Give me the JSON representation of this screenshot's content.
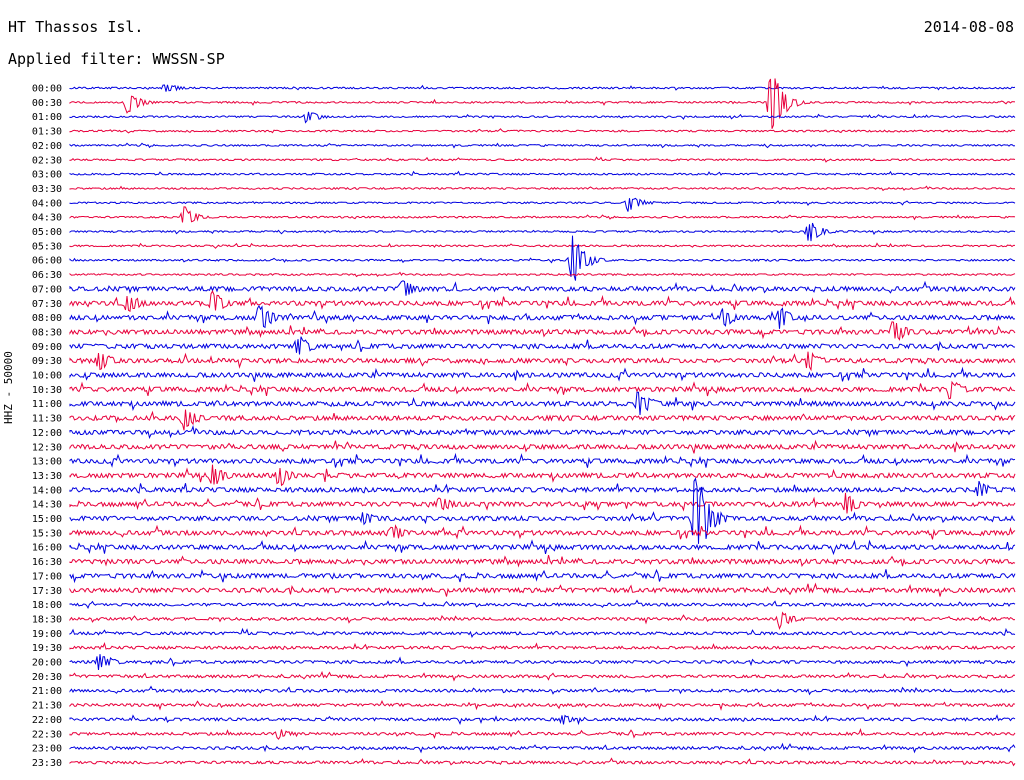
{
  "header": {
    "station": "HT Thassos Isl.",
    "date": "2014-08-08",
    "filter_label": "Applied filter: WWSSN-SP"
  },
  "chart_data": {
    "type": "line",
    "title": "HT Thassos Isl.",
    "subtitle": "Applied filter: WWSSN-SP",
    "date": "2014-08-08",
    "ylabel": "HHZ - 50000",
    "trace_labels": [
      "00:00",
      "00:30",
      "01:00",
      "01:30",
      "02:00",
      "02:30",
      "03:00",
      "03:30",
      "04:00",
      "04:30",
      "05:00",
      "05:30",
      "06:00",
      "06:30",
      "07:00",
      "07:30",
      "08:00",
      "08:30",
      "09:00",
      "09:30",
      "10:00",
      "10:30",
      "11:00",
      "11:30",
      "12:00",
      "12:30",
      "13:00",
      "13:30",
      "14:00",
      "14:30",
      "15:00",
      "15:30",
      "16:00",
      "16:30",
      "17:00",
      "17:30",
      "18:00",
      "18:30",
      "19:00",
      "19:30",
      "20:00",
      "20:30",
      "21:00",
      "21:30",
      "22:00",
      "22:30",
      "23:00",
      "23:30"
    ],
    "series_colors": [
      "#0000e0",
      "#e8003c"
    ],
    "events": [
      {
        "trace": "00:00",
        "pos": 0.1,
        "amp": 6
      },
      {
        "trace": "00:30",
        "pos": 0.06,
        "amp": 12
      },
      {
        "trace": "00:30",
        "pos": 0.74,
        "amp": 40
      },
      {
        "trace": "01:00",
        "pos": 0.25,
        "amp": 8
      },
      {
        "trace": "04:00",
        "pos": 0.59,
        "amp": 10
      },
      {
        "trace": "04:30",
        "pos": 0.12,
        "amp": 12
      },
      {
        "trace": "05:00",
        "pos": 0.78,
        "amp": 14
      },
      {
        "trace": "06:00",
        "pos": 0.53,
        "amp": 30
      },
      {
        "trace": "07:00",
        "pos": 0.35,
        "amp": 14
      },
      {
        "trace": "07:30",
        "pos": 0.06,
        "amp": 14
      },
      {
        "trace": "07:30",
        "pos": 0.15,
        "amp": 14
      },
      {
        "trace": "08:00",
        "pos": 0.2,
        "amp": 18
      },
      {
        "trace": "08:00",
        "pos": 0.69,
        "amp": 12
      },
      {
        "trace": "08:00",
        "pos": 0.75,
        "amp": 12
      },
      {
        "trace": "08:30",
        "pos": 0.87,
        "amp": 14
      },
      {
        "trace": "09:00",
        "pos": 0.24,
        "amp": 14
      },
      {
        "trace": "09:30",
        "pos": 0.03,
        "amp": 12
      },
      {
        "trace": "09:30",
        "pos": 0.78,
        "amp": 12
      },
      {
        "trace": "10:30",
        "pos": 0.93,
        "amp": 12
      },
      {
        "trace": "11:00",
        "pos": 0.6,
        "amp": 16
      },
      {
        "trace": "11:30",
        "pos": 0.12,
        "amp": 16
      },
      {
        "trace": "13:30",
        "pos": 0.15,
        "amp": 14
      },
      {
        "trace": "13:30",
        "pos": 0.22,
        "amp": 14
      },
      {
        "trace": "14:00",
        "pos": 0.96,
        "amp": 10
      },
      {
        "trace": "14:30",
        "pos": 0.39,
        "amp": 10
      },
      {
        "trace": "14:30",
        "pos": 0.82,
        "amp": 12
      },
      {
        "trace": "15:00",
        "pos": 0.31,
        "amp": 8
      },
      {
        "trace": "15:00",
        "pos": 0.66,
        "amp": 60
      },
      {
        "trace": "15:30",
        "pos": 0.34,
        "amp": 10
      },
      {
        "trace": "18:30",
        "pos": 0.75,
        "amp": 10
      },
      {
        "trace": "20:00",
        "pos": 0.03,
        "amp": 12
      },
      {
        "trace": "22:00",
        "pos": 0.52,
        "amp": 6
      },
      {
        "trace": "22:30",
        "pos": 0.22,
        "amp": 6
      }
    ]
  }
}
